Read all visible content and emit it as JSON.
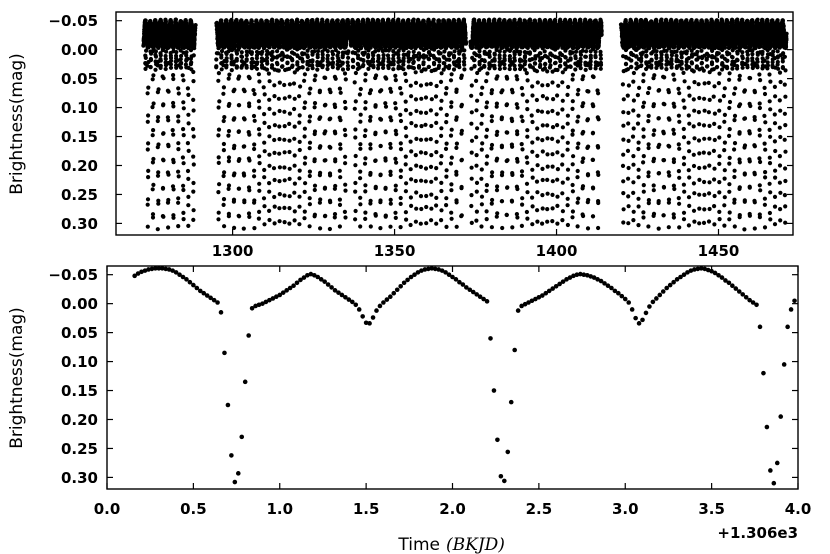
{
  "chart_data": [
    {
      "type": "scatter",
      "title": "",
      "xlabel": "",
      "ylabel": "Brightness(mag)",
      "xlim": [
        1264,
        1473
      ],
      "ylim": [
        0.32,
        -0.065
      ],
      "y_inverted": true,
      "grid": false,
      "xticks": [
        1300,
        1350,
        1400,
        1450
      ],
      "xtick_labels": [
        "1300",
        "1350",
        "1400",
        "1450"
      ],
      "yticks": [
        -0.05,
        0.0,
        0.05,
        0.1,
        0.15,
        0.2,
        0.25,
        0.3
      ],
      "ytick_labels": [
        "−0.05",
        "0.00",
        "0.05",
        "0.10",
        "0.15",
        "0.20",
        "0.25",
        "0.30"
      ],
      "observation_segments": [
        [
          1272.5,
          1288.5
        ],
        [
          1295.0,
          1336.0
        ],
        [
          1336.5,
          1372.0
        ],
        [
          1373.5,
          1414.0
        ],
        [
          1420.0,
          1471.0
        ]
      ],
      "eclipsing_binary": {
        "period": 1.5612,
        "epoch": 1306.65,
        "max_brightness": -0.05,
        "out_of_eclipse_min": 0.0,
        "primary_eclipse_depth": 0.31,
        "secondary_eclipse_phase": 0.545,
        "secondary_eclipse_depth": 0.035,
        "cadence_days": 0.0204
      }
    },
    {
      "type": "scatter",
      "title": "",
      "xlabel": "Time",
      "xlabel_math": "(BKJD)",
      "ylabel": "Brightness(mag)",
      "x_offset_label": "+1.306e3",
      "xlim": [
        0.0,
        4.0
      ],
      "ylim": [
        0.32,
        -0.065
      ],
      "y_inverted": true,
      "grid": false,
      "xticks": [
        0.0,
        0.5,
        1.0,
        1.5,
        2.0,
        2.5,
        3.0,
        3.5,
        4.0
      ],
      "xtick_labels": [
        "0.0",
        "0.5",
        "1.0",
        "1.5",
        "2.0",
        "2.5",
        "3.0",
        "3.5",
        "4.0"
      ],
      "yticks": [
        -0.05,
        0.0,
        0.05,
        0.1,
        0.15,
        0.2,
        0.25,
        0.3
      ],
      "ytick_labels": [
        "−0.05",
        "0.00",
        "0.05",
        "0.10",
        "0.15",
        "0.20",
        "0.25",
        "0.30"
      ],
      "points": [
        [
          0.16,
          -0.048
        ],
        [
          0.18,
          -0.052
        ],
        [
          0.2,
          -0.055
        ],
        [
          0.22,
          -0.057
        ],
        [
          0.24,
          -0.059
        ],
        [
          0.26,
          -0.06
        ],
        [
          0.28,
          -0.061
        ],
        [
          0.3,
          -0.061
        ],
        [
          0.32,
          -0.061
        ],
        [
          0.34,
          -0.06
        ],
        [
          0.36,
          -0.059
        ],
        [
          0.38,
          -0.057
        ],
        [
          0.4,
          -0.054
        ],
        [
          0.42,
          -0.05
        ],
        [
          0.44,
          -0.046
        ],
        [
          0.46,
          -0.042
        ],
        [
          0.48,
          -0.037
        ],
        [
          0.5,
          -0.032
        ],
        [
          0.52,
          -0.027
        ],
        [
          0.54,
          -0.022
        ],
        [
          0.56,
          -0.018
        ],
        [
          0.58,
          -0.014
        ],
        [
          0.6,
          -0.01
        ],
        [
          0.62,
          -0.006
        ],
        [
          0.64,
          -0.002
        ],
        [
          0.66,
          0.015
        ],
        [
          0.68,
          0.085
        ],
        [
          0.7,
          0.175
        ],
        [
          0.72,
          0.262
        ],
        [
          0.74,
          0.308
        ],
        [
          0.76,
          0.293
        ],
        [
          0.78,
          0.23
        ],
        [
          0.8,
          0.135
        ],
        [
          0.82,
          0.055
        ],
        [
          0.84,
          0.008
        ],
        [
          0.86,
          0.004
        ],
        [
          0.88,
          0.002
        ],
        [
          0.9,
          0.0
        ],
        [
          0.92,
          -0.003
        ],
        [
          0.94,
          -0.006
        ],
        [
          0.96,
          -0.009
        ],
        [
          0.98,
          -0.012
        ],
        [
          1.0,
          -0.015
        ],
        [
          1.02,
          -0.019
        ],
        [
          1.04,
          -0.023
        ],
        [
          1.06,
          -0.027
        ],
        [
          1.08,
          -0.031
        ],
        [
          1.1,
          -0.036
        ],
        [
          1.12,
          -0.041
        ],
        [
          1.14,
          -0.045
        ],
        [
          1.16,
          -0.049
        ],
        [
          1.18,
          -0.051
        ],
        [
          1.2,
          -0.049
        ],
        [
          1.22,
          -0.046
        ],
        [
          1.24,
          -0.042
        ],
        [
          1.26,
          -0.038
        ],
        [
          1.28,
          -0.033
        ],
        [
          1.3,
          -0.028
        ],
        [
          1.32,
          -0.023
        ],
        [
          1.34,
          -0.019
        ],
        [
          1.36,
          -0.015
        ],
        [
          1.38,
          -0.011
        ],
        [
          1.4,
          -0.007
        ],
        [
          1.42,
          -0.003
        ],
        [
          1.44,
          0.002
        ],
        [
          1.46,
          0.01
        ],
        [
          1.48,
          0.022
        ],
        [
          1.5,
          0.033
        ],
        [
          1.52,
          0.034
        ],
        [
          1.54,
          0.024
        ],
        [
          1.56,
          0.012
        ],
        [
          1.58,
          0.004
        ],
        [
          1.6,
          -0.002
        ],
        [
          1.62,
          -0.007
        ],
        [
          1.64,
          -0.012
        ],
        [
          1.66,
          -0.018
        ],
        [
          1.68,
          -0.024
        ],
        [
          1.7,
          -0.03
        ],
        [
          1.72,
          -0.036
        ],
        [
          1.74,
          -0.041
        ],
        [
          1.76,
          -0.046
        ],
        [
          1.78,
          -0.05
        ],
        [
          1.8,
          -0.054
        ],
        [
          1.82,
          -0.057
        ],
        [
          1.84,
          -0.059
        ],
        [
          1.86,
          -0.06
        ],
        [
          1.88,
          -0.061
        ],
        [
          1.9,
          -0.06
        ],
        [
          1.92,
          -0.059
        ],
        [
          1.94,
          -0.057
        ],
        [
          1.96,
          -0.054
        ],
        [
          1.98,
          -0.05
        ],
        [
          2.0,
          -0.046
        ],
        [
          2.02,
          -0.042
        ],
        [
          2.04,
          -0.037
        ],
        [
          2.06,
          -0.033
        ],
        [
          2.08,
          -0.028
        ],
        [
          2.1,
          -0.024
        ],
        [
          2.12,
          -0.02
        ],
        [
          2.14,
          -0.016
        ],
        [
          2.16,
          -0.012
        ],
        [
          2.18,
          -0.008
        ],
        [
          2.2,
          -0.004
        ],
        [
          2.22,
          0.06
        ],
        [
          2.24,
          0.15
        ],
        [
          2.26,
          0.235
        ],
        [
          2.28,
          0.298
        ],
        [
          2.3,
          0.306
        ],
        [
          2.32,
          0.256
        ],
        [
          2.34,
          0.17
        ],
        [
          2.36,
          0.08
        ],
        [
          2.38,
          0.012
        ],
        [
          2.4,
          0.004
        ],
        [
          2.42,
          0.001
        ],
        [
          2.44,
          -0.002
        ],
        [
          2.46,
          -0.005
        ],
        [
          2.48,
          -0.008
        ],
        [
          2.5,
          -0.011
        ],
        [
          2.52,
          -0.014
        ],
        [
          2.54,
          -0.018
        ],
        [
          2.56,
          -0.022
        ],
        [
          2.58,
          -0.026
        ],
        [
          2.6,
          -0.03
        ],
        [
          2.62,
          -0.034
        ],
        [
          2.64,
          -0.038
        ],
        [
          2.66,
          -0.042
        ],
        [
          2.68,
          -0.045
        ],
        [
          2.7,
          -0.048
        ],
        [
          2.72,
          -0.05
        ],
        [
          2.74,
          -0.051
        ],
        [
          2.76,
          -0.05
        ],
        [
          2.78,
          -0.049
        ],
        [
          2.8,
          -0.047
        ],
        [
          2.82,
          -0.045
        ],
        [
          2.84,
          -0.042
        ],
        [
          2.86,
          -0.039
        ],
        [
          2.88,
          -0.035
        ],
        [
          2.9,
          -0.031
        ],
        [
          2.92,
          -0.027
        ],
        [
          2.94,
          -0.022
        ],
        [
          2.96,
          -0.018
        ],
        [
          2.98,
          -0.013
        ],
        [
          3.0,
          -0.008
        ],
        [
          3.02,
          -0.002
        ],
        [
          3.04,
          0.01
        ],
        [
          3.06,
          0.025
        ],
        [
          3.08,
          0.034
        ],
        [
          3.1,
          0.028
        ],
        [
          3.12,
          0.016
        ],
        [
          3.14,
          0.005
        ],
        [
          3.16,
          -0.003
        ],
        [
          3.18,
          -0.009
        ],
        [
          3.2,
          -0.015
        ],
        [
          3.22,
          -0.021
        ],
        [
          3.24,
          -0.027
        ],
        [
          3.26,
          -0.032
        ],
        [
          3.28,
          -0.037
        ],
        [
          3.3,
          -0.042
        ],
        [
          3.32,
          -0.046
        ],
        [
          3.34,
          -0.05
        ],
        [
          3.36,
          -0.054
        ],
        [
          3.38,
          -0.057
        ],
        [
          3.4,
          -0.059
        ],
        [
          3.42,
          -0.06
        ],
        [
          3.44,
          -0.061
        ],
        [
          3.46,
          -0.06
        ],
        [
          3.48,
          -0.058
        ],
        [
          3.5,
          -0.056
        ],
        [
          3.52,
          -0.053
        ],
        [
          3.54,
          -0.049
        ],
        [
          3.56,
          -0.045
        ],
        [
          3.58,
          -0.04
        ],
        [
          3.6,
          -0.036
        ],
        [
          3.62,
          -0.031
        ],
        [
          3.64,
          -0.026
        ],
        [
          3.66,
          -0.021
        ],
        [
          3.68,
          -0.016
        ],
        [
          3.7,
          -0.011
        ],
        [
          3.72,
          -0.006
        ],
        [
          3.74,
          -0.002
        ],
        [
          3.76,
          0.002
        ],
        [
          3.78,
          0.04
        ],
        [
          3.8,
          0.12
        ],
        [
          3.82,
          0.213
        ],
        [
          3.84,
          0.288
        ],
        [
          3.86,
          0.31
        ],
        [
          3.88,
          0.275
        ],
        [
          3.9,
          0.195
        ],
        [
          3.92,
          0.105
        ],
        [
          3.94,
          0.04
        ],
        [
          3.96,
          0.01
        ],
        [
          3.98,
          -0.005
        ]
      ]
    }
  ]
}
